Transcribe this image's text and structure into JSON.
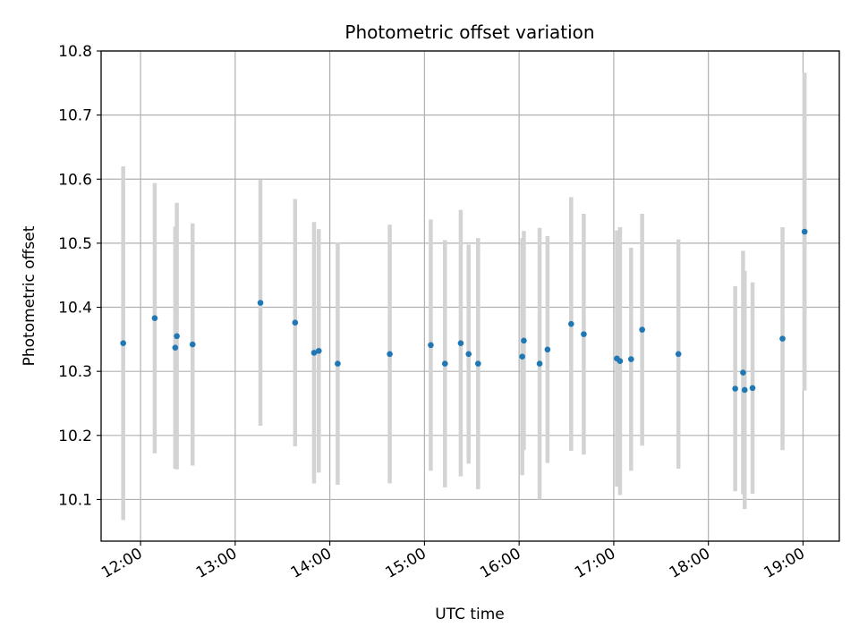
{
  "chart_data": {
    "type": "scatter",
    "title": "Photometric offset variation",
    "xlabel": "UTC time",
    "ylabel": "Photometric offset",
    "x_ticks": [
      "12:00",
      "13:00",
      "14:00",
      "15:00",
      "16:00",
      "17:00",
      "18:00",
      "19:00"
    ],
    "y_ticks": [
      "10.1",
      "10.2",
      "10.3",
      "10.4",
      "10.5",
      "10.6",
      "10.7",
      "10.8"
    ],
    "xlim": [
      "11:35",
      "19:23"
    ],
    "ylim": [
      10.035,
      10.8
    ],
    "grid": true,
    "colors": {
      "point": "#1f77b4",
      "errorbar": "#d3d3d3",
      "grid": "#b0b0b0"
    },
    "series": [
      {
        "points": [
          {
            "x": "11:49",
            "y": 10.344,
            "err": 0.276
          },
          {
            "x": "12:09",
            "y": 10.383,
            "err": 0.211
          },
          {
            "x": "12:22",
            "y": 10.337,
            "err": 0.189
          },
          {
            "x": "12:23",
            "y": 10.355,
            "err": 0.208
          },
          {
            "x": "12:33",
            "y": 10.342,
            "err": 0.189
          },
          {
            "x": "13:16",
            "y": 10.407,
            "err": 0.192
          },
          {
            "x": "13:38",
            "y": 10.376,
            "err": 0.193
          },
          {
            "x": "13:50",
            "y": 10.329,
            "err": 0.204
          },
          {
            "x": "13:53",
            "y": 10.332,
            "err": 0.19
          },
          {
            "x": "14:05",
            "y": 10.312,
            "err": 0.189
          },
          {
            "x": "14:38",
            "y": 10.327,
            "err": 0.202
          },
          {
            "x": "15:04",
            "y": 10.341,
            "err": 0.196
          },
          {
            "x": "15:13",
            "y": 10.312,
            "err": 0.193
          },
          {
            "x": "15:23",
            "y": 10.344,
            "err": 0.208
          },
          {
            "x": "15:28",
            "y": 10.327,
            "err": 0.171
          },
          {
            "x": "15:34",
            "y": 10.312,
            "err": 0.196
          },
          {
            "x": "16:02",
            "y": 10.323,
            "err": 0.185
          },
          {
            "x": "16:03",
            "y": 10.348,
            "err": 0.171
          },
          {
            "x": "16:13",
            "y": 10.312,
            "err": 0.212
          },
          {
            "x": "16:18",
            "y": 10.334,
            "err": 0.177
          },
          {
            "x": "16:33",
            "y": 10.374,
            "err": 0.198
          },
          {
            "x": "16:41",
            "y": 10.358,
            "err": 0.188
          },
          {
            "x": "17:02",
            "y": 10.32,
            "err": 0.2
          },
          {
            "x": "17:04",
            "y": 10.316,
            "err": 0.209
          },
          {
            "x": "17:11",
            "y": 10.319,
            "err": 0.174
          },
          {
            "x": "17:18",
            "y": 10.365,
            "err": 0.181
          },
          {
            "x": "17:41",
            "y": 10.327,
            "err": 0.179
          },
          {
            "x": "18:17",
            "y": 10.273,
            "err": 0.16
          },
          {
            "x": "18:22",
            "y": 10.298,
            "err": 0.19
          },
          {
            "x": "18:23",
            "y": 10.271,
            "err": 0.186
          },
          {
            "x": "18:28",
            "y": 10.274,
            "err": 0.165
          },
          {
            "x": "18:47",
            "y": 10.351,
            "err": 0.174
          },
          {
            "x": "19:01",
            "y": 10.518,
            "err": 0.248
          }
        ]
      }
    ]
  }
}
